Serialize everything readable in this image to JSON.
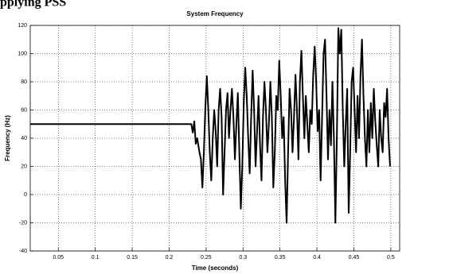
{
  "caption": "pplying PSS",
  "chart_data": {
    "type": "line",
    "title": "System Frequency",
    "xlabel": "Time (seconds)",
    "ylabel": "Frequency (Hz)",
    "xlim": [
      0.012,
      0.512
    ],
    "ylim": [
      -40,
      120
    ],
    "xticks": [
      0.05,
      0.1,
      0.15,
      0.2,
      0.25,
      0.3,
      0.35,
      0.4,
      0.45,
      0.5
    ],
    "yticks": [
      -40,
      -20,
      0,
      20,
      40,
      60,
      80,
      100,
      120
    ],
    "grid": true,
    "color": "#000000",
    "x": [
      0.012,
      0.23,
      0.232,
      0.234,
      0.236,
      0.238,
      0.241,
      0.243,
      0.245,
      0.247,
      0.249,
      0.251,
      0.253,
      0.255,
      0.257,
      0.259,
      0.261,
      0.263,
      0.265,
      0.267,
      0.269,
      0.271,
      0.273,
      0.275,
      0.277,
      0.279,
      0.281,
      0.283,
      0.285,
      0.287,
      0.289,
      0.291,
      0.293,
      0.295,
      0.297,
      0.299,
      0.301,
      0.303,
      0.305,
      0.307,
      0.309,
      0.311,
      0.313,
      0.315,
      0.317,
      0.319,
      0.321,
      0.323,
      0.325,
      0.327,
      0.329,
      0.331,
      0.333,
      0.335,
      0.337,
      0.339,
      0.341,
      0.343,
      0.345,
      0.347,
      0.349,
      0.351,
      0.353,
      0.355,
      0.357,
      0.359,
      0.361,
      0.363,
      0.365,
      0.367,
      0.369,
      0.371,
      0.373,
      0.375,
      0.377,
      0.379,
      0.381,
      0.383,
      0.385,
      0.387,
      0.389,
      0.391,
      0.393,
      0.395,
      0.397,
      0.399,
      0.401,
      0.403,
      0.405,
      0.407,
      0.409,
      0.411,
      0.413,
      0.415,
      0.417,
      0.419,
      0.421,
      0.423,
      0.425,
      0.427,
      0.429,
      0.431,
      0.433,
      0.435,
      0.437,
      0.439,
      0.441,
      0.443,
      0.445,
      0.447,
      0.449,
      0.451,
      0.453,
      0.455,
      0.457,
      0.459,
      0.461,
      0.463,
      0.465,
      0.467,
      0.469,
      0.471,
      0.473,
      0.475,
      0.477,
      0.479,
      0.481,
      0.483,
      0.485,
      0.487,
      0.489,
      0.491,
      0.493,
      0.495,
      0.497,
      0.499
    ],
    "values": [
      50,
      50,
      44,
      52,
      36,
      40,
      30,
      25,
      5,
      30,
      62,
      84,
      60,
      30,
      10,
      40,
      60,
      45,
      20,
      60,
      75,
      55,
      0,
      30,
      60,
      72,
      40,
      60,
      75,
      55,
      25,
      50,
      72,
      30,
      -10,
      20,
      65,
      90,
      70,
      40,
      15,
      55,
      88,
      60,
      20,
      45,
      70,
      35,
      10,
      55,
      80,
      60,
      30,
      50,
      80,
      55,
      5,
      30,
      70,
      60,
      95,
      70,
      40,
      55,
      10,
      -20,
      30,
      75,
      60,
      30,
      55,
      85,
      60,
      25,
      80,
      102,
      70,
      40,
      70,
      50,
      30,
      60,
      50,
      85,
      105,
      80,
      45,
      60,
      10,
      55,
      100,
      110,
      70,
      25,
      60,
      35,
      80,
      40,
      -20,
      40,
      118,
      100,
      117,
      60,
      20,
      50,
      75,
      -13,
      30,
      80,
      90,
      60,
      30,
      70,
      40,
      85,
      110,
      70,
      40,
      20,
      60,
      30,
      65,
      40,
      75,
      52,
      35,
      20,
      60,
      40,
      30,
      65,
      55,
      75,
      40,
      20
    ]
  }
}
